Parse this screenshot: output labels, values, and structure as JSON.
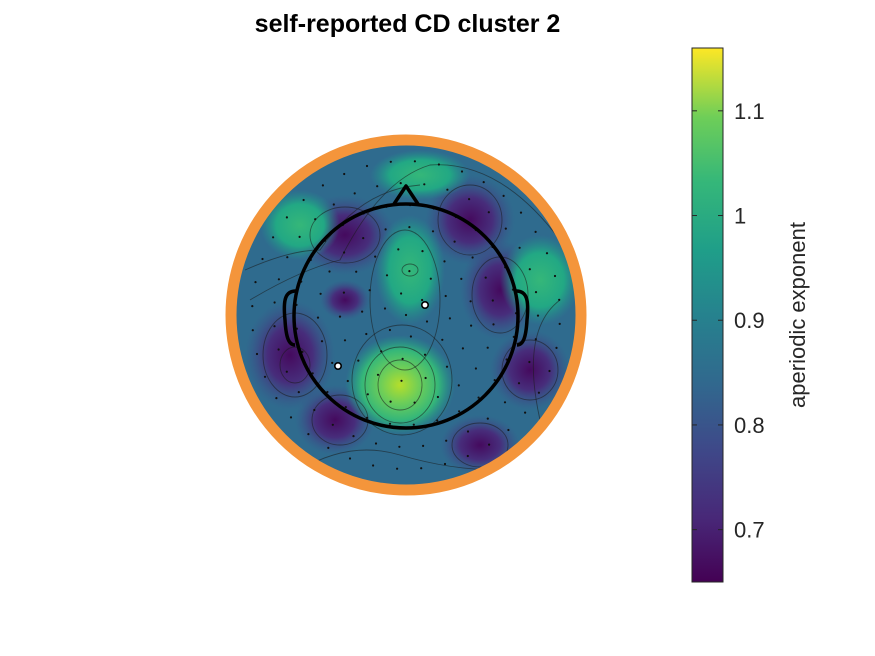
{
  "chart_data": {
    "type": "heatmap",
    "title": "self-reported CD cluster 2",
    "colorbar": {
      "label": "aperiodic exponent",
      "clim": [
        0.65,
        1.16
      ],
      "ticks": [
        0.7,
        0.8,
        0.9,
        1.0,
        1.1
      ],
      "tick_labels": [
        "0.7",
        "0.8",
        "0.9",
        "1",
        "1.1"
      ],
      "colormap": "viridis"
    },
    "value_range_shown": [
      0.65,
      1.16
    ],
    "highlight_ring_color": "#f4953b",
    "background_color": "#ffffff",
    "markers": [
      {
        "label": "electrode-a",
        "value_hint": "white marker"
      },
      {
        "label": "electrode-b",
        "value_hint": "white marker"
      }
    ]
  }
}
